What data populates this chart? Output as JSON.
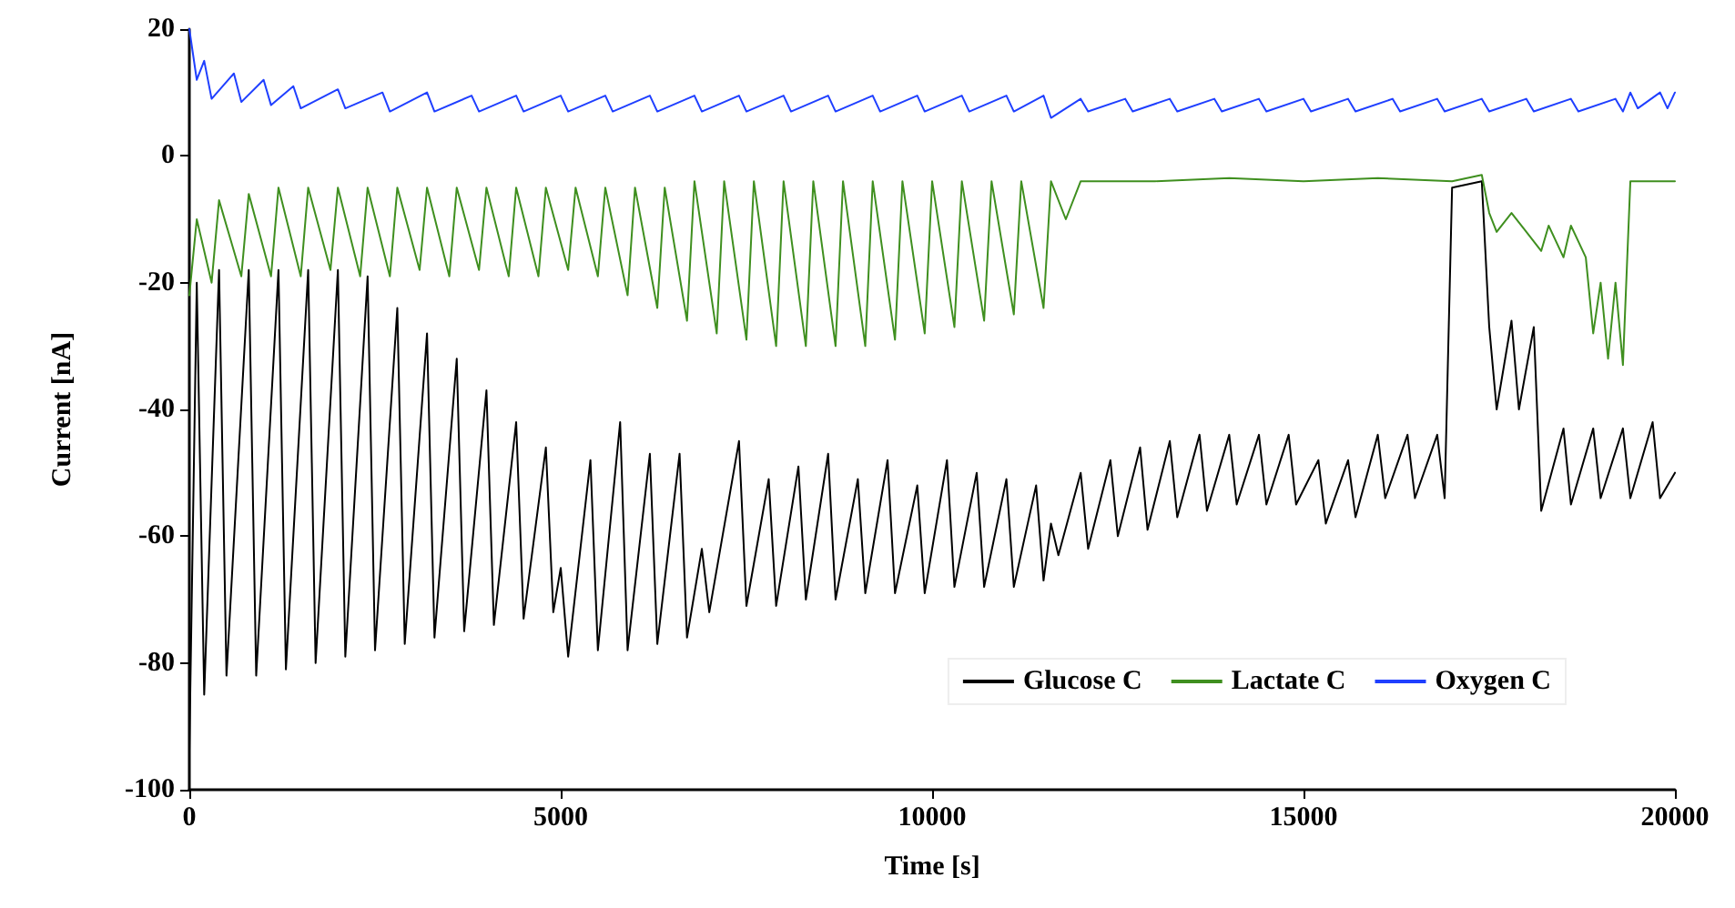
{
  "chart_data": {
    "type": "line",
    "xlabel": "Time [s]",
    "ylabel": "Current [nA]",
    "xlim": [
      0,
      20000
    ],
    "xticks": [
      0,
      5000,
      10000,
      15000,
      20000
    ],
    "ylim": [
      -100,
      20
    ],
    "yticks": [
      -100,
      -80,
      -60,
      -40,
      -20,
      0,
      20
    ],
    "grid": false,
    "legend": "bottom right",
    "marker": "none",
    "line_style": "solid",
    "series": [
      {
        "name": "Glucose C",
        "color": "#000000",
        "x": [
          0,
          100,
          200,
          400,
          500,
          800,
          900,
          1200,
          1300,
          1600,
          1700,
          2000,
          2100,
          2400,
          2500,
          2800,
          2900,
          3200,
          3300,
          3600,
          3700,
          4000,
          4100,
          4400,
          4500,
          4800,
          4900,
          5000,
          5100,
          5400,
          5500,
          5800,
          5900,
          6200,
          6300,
          6600,
          6700,
          6900,
          7000,
          7400,
          7500,
          7800,
          7900,
          8200,
          8300,
          8600,
          8700,
          9000,
          9100,
          9400,
          9500,
          9800,
          9900,
          10200,
          10300,
          10600,
          10700,
          11000,
          11100,
          11400,
          11500,
          11600,
          11700,
          12000,
          12100,
          12400,
          12500,
          12800,
          12900,
          13200,
          13300,
          13600,
          13700,
          14000,
          14100,
          14400,
          14500,
          14800,
          14900,
          15200,
          15300,
          15600,
          15700,
          16000,
          16100,
          16400,
          16500,
          16800,
          16900,
          17000,
          17400,
          17500,
          17600,
          17800,
          17900,
          18100,
          18200,
          18500,
          18600,
          18900,
          19000,
          19300,
          19400,
          19700,
          19800,
          20000
        ],
        "values": [
          -94,
          -20,
          -85,
          -18,
          -82,
          -18,
          -82,
          -18,
          -81,
          -18,
          -80,
          -18,
          -79,
          -19,
          -78,
          -24,
          -77,
          -28,
          -76,
          -32,
          -75,
          -37,
          -74,
          -42,
          -73,
          -46,
          -72,
          -65,
          -79,
          -48,
          -78,
          -42,
          -78,
          -47,
          -77,
          -47,
          -76,
          -62,
          -72,
          -45,
          -71,
          -51,
          -71,
          -49,
          -70,
          -47,
          -70,
          -51,
          -69,
          -48,
          -69,
          -52,
          -69,
          -48,
          -68,
          -50,
          -68,
          -51,
          -68,
          -52,
          -67,
          -58,
          -63,
          -50,
          -62,
          -48,
          -60,
          -46,
          -59,
          -45,
          -57,
          -44,
          -56,
          -44,
          -55,
          -44,
          -55,
          -44,
          -55,
          -48,
          -58,
          -48,
          -57,
          -44,
          -54,
          -44,
          -54,
          -44,
          -54,
          -5,
          -4,
          -27,
          -40,
          -26,
          -40,
          -27,
          -56,
          -43,
          -55,
          -43,
          -54,
          -43,
          -54,
          -42,
          -54,
          -50
        ]
      },
      {
        "name": "Lactate C",
        "color": "#3f8f1f",
        "x": [
          0,
          100,
          300,
          400,
          700,
          800,
          1100,
          1200,
          1500,
          1600,
          1900,
          2000,
          2300,
          2400,
          2700,
          2800,
          3100,
          3200,
          3500,
          3600,
          3900,
          4000,
          4300,
          4400,
          4700,
          4800,
          5100,
          5200,
          5500,
          5600,
          5900,
          6000,
          6300,
          6400,
          6700,
          6800,
          7100,
          7200,
          7500,
          7600,
          7900,
          8000,
          8300,
          8400,
          8700,
          8800,
          9100,
          9200,
          9500,
          9600,
          9900,
          10000,
          10300,
          10400,
          10700,
          10800,
          11100,
          11200,
          11500,
          11600,
          11800,
          12000,
          13000,
          14000,
          15000,
          16000,
          17000,
          17400,
          17500,
          17600,
          17800,
          18000,
          18200,
          18300,
          18500,
          18600,
          18800,
          18900,
          19000,
          19100,
          19200,
          19300,
          19400,
          20000
        ],
        "values": [
          -22,
          -10,
          -20,
          -7,
          -19,
          -6,
          -19,
          -5,
          -19,
          -5,
          -18,
          -5,
          -19,
          -5,
          -19,
          -5,
          -18,
          -5,
          -19,
          -5,
          -18,
          -5,
          -19,
          -5,
          -19,
          -5,
          -18,
          -5,
          -19,
          -5,
          -22,
          -5,
          -24,
          -5,
          -26,
          -4,
          -28,
          -4,
          -29,
          -4,
          -30,
          -4,
          -30,
          -4,
          -30,
          -4,
          -30,
          -4,
          -29,
          -4,
          -28,
          -4,
          -27,
          -4,
          -26,
          -4,
          -25,
          -4,
          -24,
          -4,
          -10,
          -4,
          -4,
          -3.5,
          -4,
          -3.5,
          -4,
          -3,
          -9,
          -12,
          -9,
          -12,
          -15,
          -11,
          -16,
          -11,
          -16,
          -28,
          -20,
          -32,
          -20,
          -33,
          -4,
          -4
        ]
      },
      {
        "name": "Oxygen C",
        "color": "#1f3fff",
        "x": [
          0,
          100,
          200,
          300,
          600,
          700,
          1000,
          1100,
          1400,
          1500,
          2000,
          2100,
          2600,
          2700,
          3200,
          3300,
          3800,
          3900,
          4400,
          4500,
          5000,
          5100,
          5600,
          5700,
          6200,
          6300,
          6800,
          6900,
          7400,
          7500,
          8000,
          8100,
          8600,
          8700,
          9200,
          9300,
          9800,
          9900,
          10400,
          10500,
          11000,
          11100,
          11500,
          11600,
          12000,
          12100,
          12600,
          12700,
          13200,
          13300,
          13800,
          13900,
          14400,
          14500,
          15000,
          15100,
          15600,
          15700,
          16200,
          16300,
          16800,
          16900,
          17400,
          17500,
          18000,
          18100,
          18600,
          18700,
          19200,
          19300,
          19400,
          19500,
          19800,
          19900,
          20000
        ],
        "values": [
          20,
          12,
          15,
          9,
          13,
          8.5,
          12,
          8,
          11,
          7.5,
          10.5,
          7.5,
          10,
          7,
          10,
          7,
          9.5,
          7,
          9.5,
          7,
          9.5,
          7,
          9.5,
          7,
          9.5,
          7,
          9.5,
          7,
          9.5,
          7,
          9.5,
          7,
          9.5,
          7,
          9.5,
          7,
          9.5,
          7,
          9.5,
          7,
          9.5,
          7,
          9.5,
          6,
          9,
          7,
          9,
          7,
          9,
          7,
          9,
          7,
          9,
          7,
          9,
          7,
          9,
          7,
          9,
          7,
          9,
          7,
          9,
          7,
          9,
          7,
          9,
          7,
          9,
          7,
          10,
          7.5,
          10,
          7.5,
          10
        ]
      }
    ]
  }
}
